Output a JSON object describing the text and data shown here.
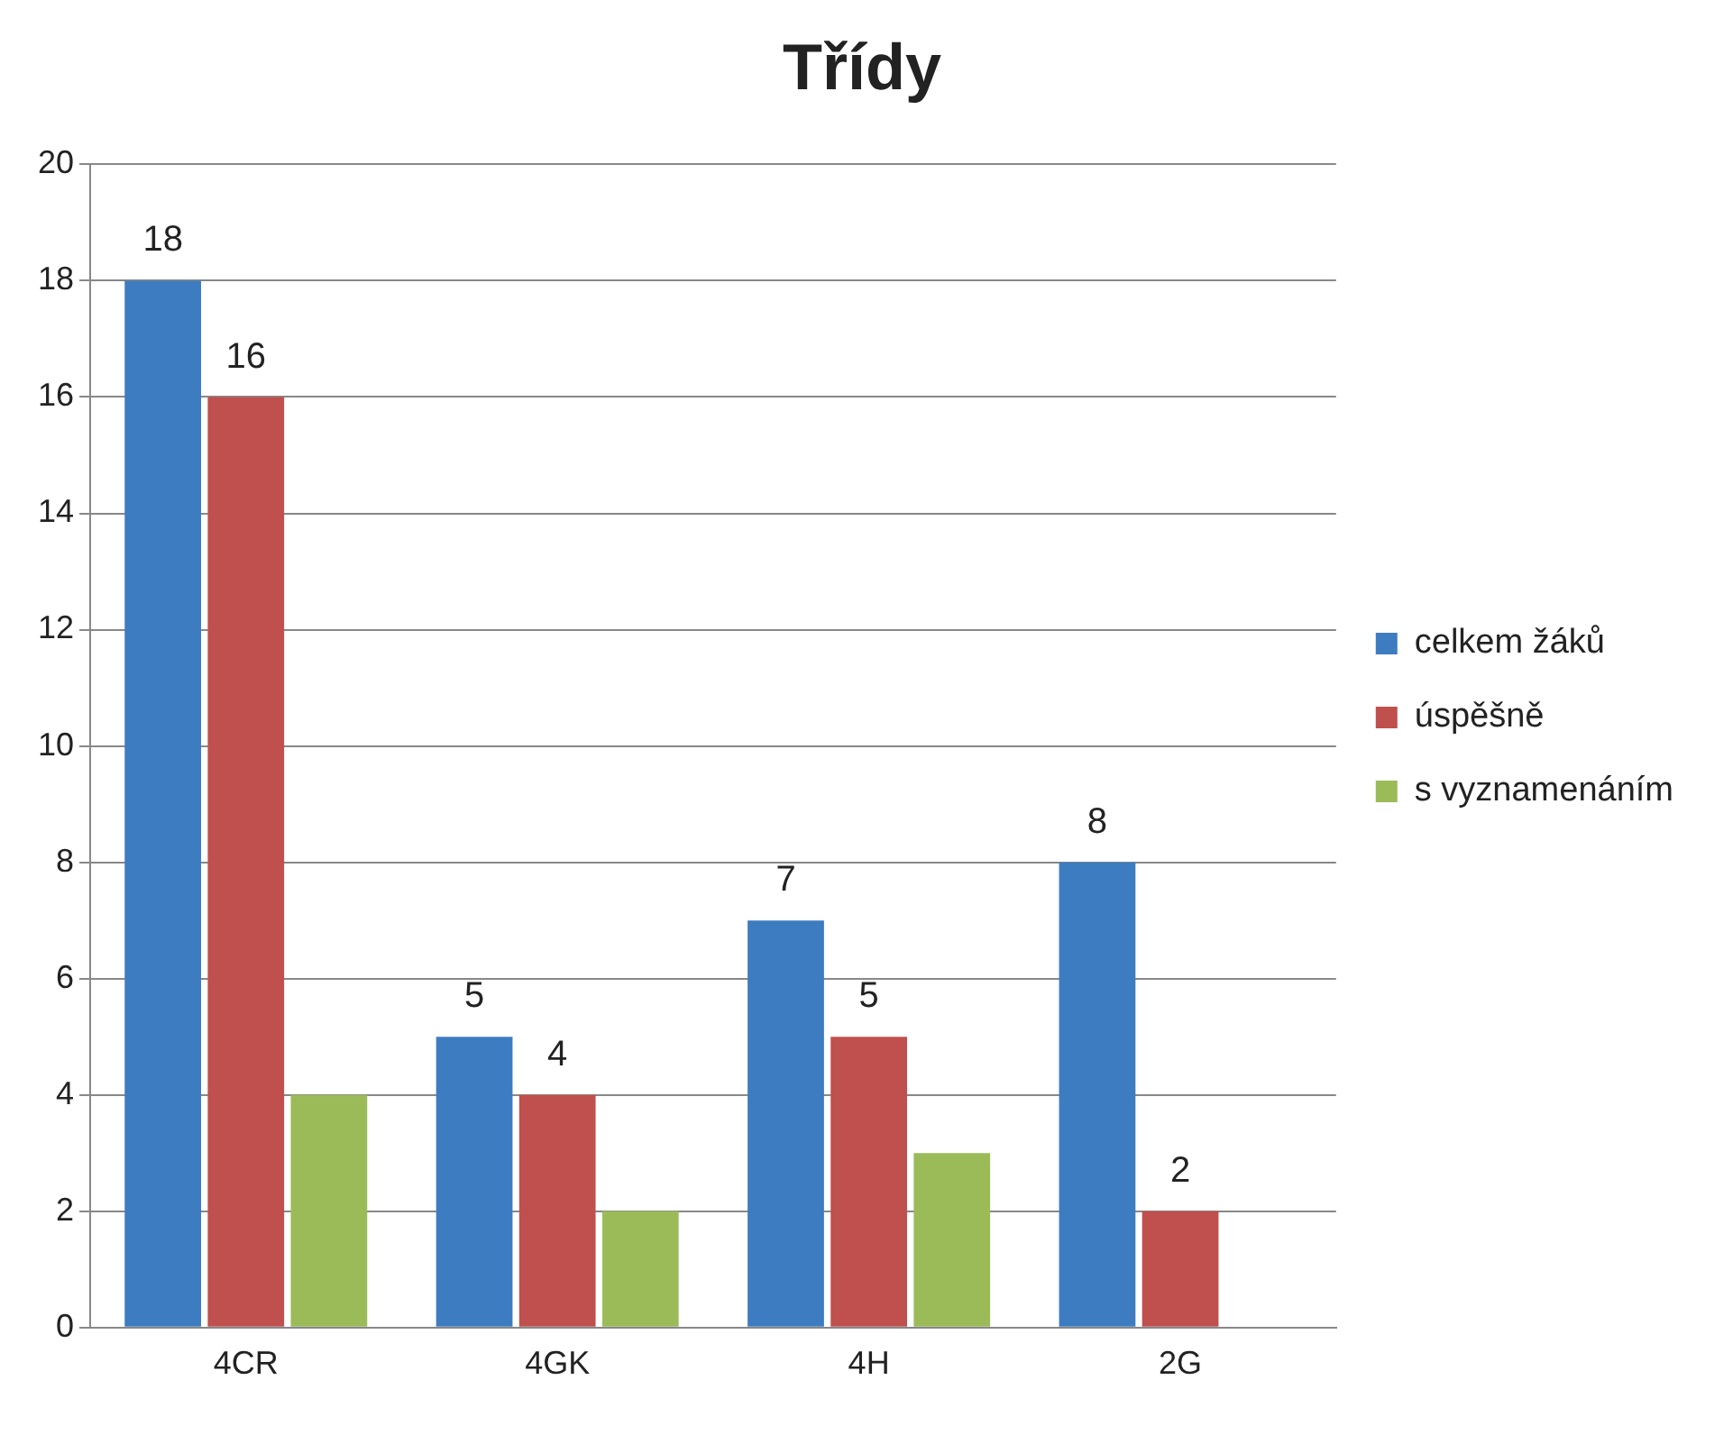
{
  "chart_data": {
    "type": "bar",
    "title": "Třídy",
    "categories": [
      "4CR",
      "4GK",
      "4H",
      "2G"
    ],
    "series": [
      {
        "name": "celkem žáků",
        "color": "#3d7cc0",
        "values": [
          18,
          5,
          7,
          8
        ],
        "value_labels": [
          "18",
          "5",
          "7",
          "8"
        ]
      },
      {
        "name": "úspěšně",
        "color": "#c0504d",
        "values": [
          16,
          4,
          5,
          2
        ],
        "value_labels": [
          "16",
          "4",
          "5",
          "2"
        ]
      },
      {
        "name": "s vyznamenáním",
        "color": "#9bbb59",
        "values": [
          4,
          2,
          3,
          0
        ]
      }
    ],
    "ylim": [
      0,
      20
    ],
    "yticks": [
      0,
      2,
      4,
      6,
      8,
      10,
      12,
      14,
      16,
      18,
      20
    ],
    "grid": "y",
    "legend": "right"
  }
}
